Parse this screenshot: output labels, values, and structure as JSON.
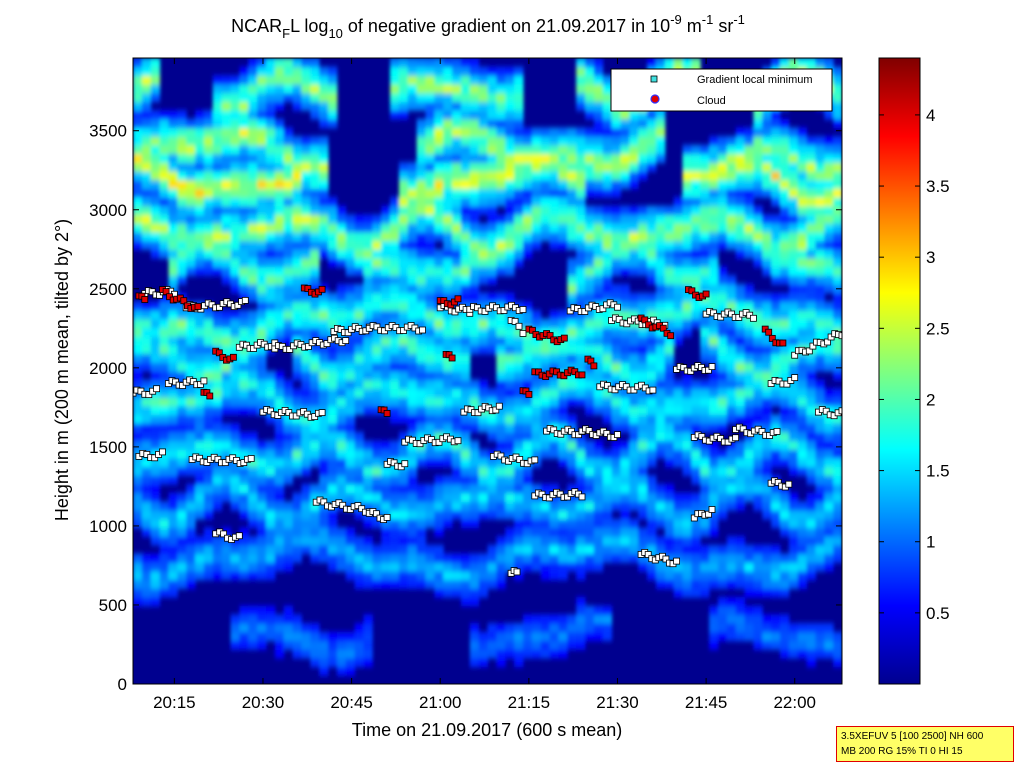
{
  "chart_data": {
    "type": "heatmap",
    "title": {
      "prefix": "NCAR",
      "prefix_sub": "F",
      "part2": "L log",
      "log_sub": "10",
      "part3": " of negative gradient on 21.09.2017 in 10",
      "exp1": "-9",
      "part4": " m",
      "exp2": "-1",
      "part5": " sr",
      "exp3": "-1"
    },
    "xlabel": "Time on 21.09.2017 (600 s mean)",
    "ylabel": "Height in m (200 m mean, tilted by 2°)",
    "x_range": [
      "20:08",
      "22:08"
    ],
    "x_ticks": [
      "20:15",
      "20:30",
      "20:45",
      "21:00",
      "21:15",
      "21:30",
      "21:45",
      "22:00"
    ],
    "ylim": [
      0,
      3960
    ],
    "y_ticks": [
      0,
      500,
      1000,
      1500,
      2000,
      2500,
      3000,
      3500
    ],
    "colorbar": {
      "range": [
        0,
        4.4
      ],
      "ticks": [
        "0.5",
        "1",
        "1.5",
        "2",
        "2.5",
        "3",
        "3.5",
        "4"
      ],
      "colormap": "jet"
    },
    "legend": {
      "position": "top-right",
      "entries": [
        "Gradient local minimum",
        "Cloud"
      ]
    },
    "layers": [
      {
        "h": 3760,
        "v": 2.3,
        "cov": 0.55
      },
      {
        "h": 3380,
        "v": 2.4,
        "cov": 0.6
      },
      {
        "h": 3200,
        "v": 2.6,
        "cov": 0.5
      },
      {
        "h": 2870,
        "v": 2.3,
        "cov": 0.75
      },
      {
        "h": 2650,
        "v": 2.0,
        "cov": 0.6
      },
      {
        "h": 2300,
        "v": 2.0,
        "cov": 0.8
      },
      {
        "h": 2080,
        "v": 1.9,
        "cov": 0.7
      },
      {
        "h": 1800,
        "v": 1.8,
        "cov": 0.75
      },
      {
        "h": 1450,
        "v": 1.7,
        "cov": 0.9
      },
      {
        "h": 1150,
        "v": 1.5,
        "cov": 0.8
      },
      {
        "h": 800,
        "v": 1.4,
        "cov": 0.85
      },
      {
        "h": 300,
        "v": 1.1,
        "cov": 0.4
      }
    ],
    "series": [
      {
        "name": "Gradient local minimum",
        "segments": [
          {
            "t": [
              "20:08",
              "20:12"
            ],
            "h": [
              1840,
              1850
            ]
          },
          {
            "t": [
              "20:10",
              "20:15"
            ],
            "h": [
              2470,
              2480
            ]
          },
          {
            "t": [
              "20:14",
              "20:20"
            ],
            "h": [
              1900,
              1910
            ]
          },
          {
            "t": [
              "20:17",
              "20:27"
            ],
            "h": [
              2380,
              2410
            ]
          },
          {
            "t": [
              "20:09",
              "20:13"
            ],
            "h": [
              1440,
              1450
            ]
          },
          {
            "t": [
              "20:18",
              "20:28"
            ],
            "h": [
              1420,
              1410
            ]
          },
          {
            "t": [
              "20:22",
              "20:26"
            ],
            "h": [
              950,
              920
            ]
          },
          {
            "t": [
              "20:26",
              "20:32"
            ],
            "h": [
              2130,
              2150
            ]
          },
          {
            "t": [
              "20:32",
              "20:44"
            ],
            "h": [
              2120,
              2180
            ]
          },
          {
            "t": [
              "20:42",
              "20:48"
            ],
            "h": [
              2230,
              2250
            ]
          },
          {
            "t": [
              "20:48",
              "20:57"
            ],
            "h": [
              2250,
              2250
            ]
          },
          {
            "t": [
              "20:30",
              "20:40"
            ],
            "h": [
              1720,
              1700
            ]
          },
          {
            "t": [
              "20:39",
              "20:48"
            ],
            "h": [
              1150,
              1100
            ]
          },
          {
            "t": [
              "20:48",
              "20:51"
            ],
            "h": [
              1080,
              1050
            ]
          },
          {
            "t": [
              "20:54",
              "21:03"
            ],
            "h": [
              1530,
              1550
            ]
          },
          {
            "t": [
              "20:51",
              "20:54"
            ],
            "h": [
              1390,
              1390
            ]
          },
          {
            "t": [
              "21:00",
              "21:05"
            ],
            "h": [
              2380,
              2360
            ]
          },
          {
            "t": [
              "21:05",
              "21:14"
            ],
            "h": [
              2370,
              2380
            ]
          },
          {
            "t": [
              "21:04",
              "21:10"
            ],
            "h": [
              1720,
              1750
            ]
          },
          {
            "t": [
              "21:09",
              "21:16"
            ],
            "h": [
              1440,
              1400
            ]
          },
          {
            "t": [
              "21:12",
              "21:14"
            ],
            "h": [
              2300,
              2230
            ]
          },
          {
            "t": [
              "21:16",
              "21:24"
            ],
            "h": [
              1190,
              1200
            ]
          },
          {
            "t": [
              "21:18",
              "21:24"
            ],
            "h": [
              1600,
              1590
            ]
          },
          {
            "t": [
              "21:24",
              "21:30"
            ],
            "h": [
              1600,
              1570
            ]
          },
          {
            "t": [
              "21:22",
              "21:30"
            ],
            "h": [
              2360,
              2400
            ]
          },
          {
            "t": [
              "21:29",
              "21:38"
            ],
            "h": [
              2300,
              2280
            ]
          },
          {
            "t": [
              "21:27",
              "21:36"
            ],
            "h": [
              1880,
              1870
            ]
          },
          {
            "t": [
              "21:34",
              "21:40"
            ],
            "h": [
              820,
              770
            ]
          },
          {
            "t": [
              "21:40",
              "21:46"
            ],
            "h": [
              1990,
              2000
            ]
          },
          {
            "t": [
              "21:45",
              "21:53"
            ],
            "h": [
              2340,
              2330
            ]
          },
          {
            "t": [
              "21:43",
              "21:50"
            ],
            "h": [
              1560,
              1540
            ]
          },
          {
            "t": [
              "21:50",
              "21:57"
            ],
            "h": [
              1610,
              1580
            ]
          },
          {
            "t": [
              "21:56",
              "22:00"
            ],
            "h": [
              1900,
              1920
            ]
          },
          {
            "t": [
              "22:00",
              "22:08"
            ],
            "h": [
              2080,
              2220
            ]
          },
          {
            "t": [
              "22:04",
              "22:08"
            ],
            "h": [
              1720,
              1710
            ]
          },
          {
            "t": [
              "21:43",
              "21:46"
            ],
            "h": [
              1050,
              1100
            ]
          },
          {
            "t": [
              "21:56",
              "21:59"
            ],
            "h": [
              1270,
              1260
            ]
          },
          {
            "t": [
              "21:12",
              "21:13"
            ],
            "h": [
              700,
              700
            ]
          }
        ]
      },
      {
        "name": "Cloud",
        "segments": [
          {
            "t": [
              "20:09",
              "20:10"
            ],
            "h": [
              2440,
              2440
            ]
          },
          {
            "t": [
              "20:13",
              "20:19"
            ],
            "h": [
              2480,
              2370
            ]
          },
          {
            "t": [
              "20:22",
              "20:25"
            ],
            "h": [
              2090,
              2050
            ]
          },
          {
            "t": [
              "20:37",
              "20:40"
            ],
            "h": [
              2490,
              2480
            ]
          },
          {
            "t": [
              "20:50",
              "20:51"
            ],
            "h": [
              1720,
              1720
            ]
          },
          {
            "t": [
              "21:00",
              "21:03"
            ],
            "h": [
              2410,
              2420
            ]
          },
          {
            "t": [
              "21:01",
              "21:02"
            ],
            "h": [
              2070,
              2070
            ]
          },
          {
            "t": [
              "21:15",
              "21:21"
            ],
            "h": [
              2230,
              2170
            ]
          },
          {
            "t": [
              "21:16",
              "21:24"
            ],
            "h": [
              1960,
              1970
            ]
          },
          {
            "t": [
              "21:25",
              "21:26"
            ],
            "h": [
              2040,
              2020
            ]
          },
          {
            "t": [
              "21:34",
              "21:39"
            ],
            "h": [
              2300,
              2220
            ]
          },
          {
            "t": [
              "21:42",
              "21:45"
            ],
            "h": [
              2480,
              2450
            ]
          },
          {
            "t": [
              "21:55",
              "21:58"
            ],
            "h": [
              2230,
              2140
            ]
          },
          {
            "t": [
              "20:20",
              "20:21"
            ],
            "h": [
              1830,
              1830
            ]
          },
          {
            "t": [
              "21:14",
              "21:15"
            ],
            "h": [
              1840,
              1840
            ]
          }
        ]
      }
    ]
  },
  "param_box": {
    "line1": "3.5XEFUV 5 [100 2500] NH 600",
    "line2": "MB 200 RG 15% TI 0 HI 15"
  }
}
